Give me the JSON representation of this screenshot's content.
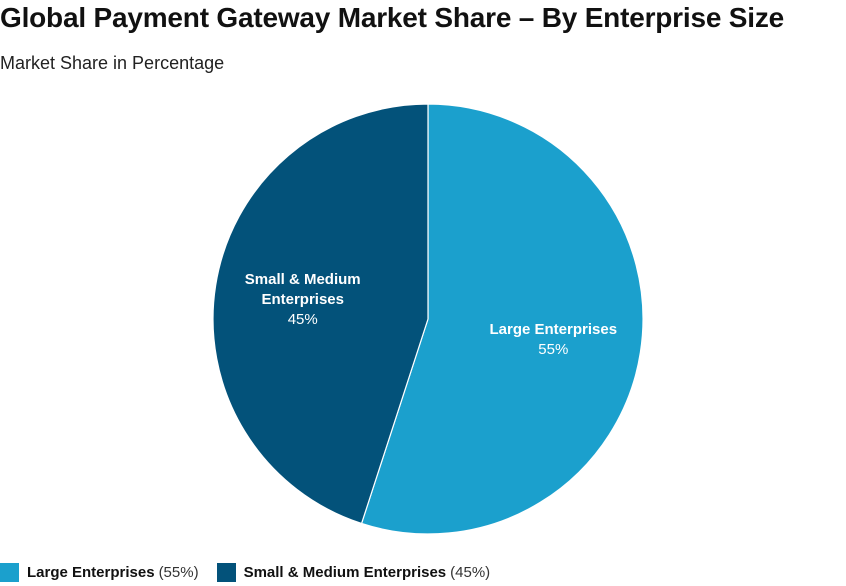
{
  "title": "Global Payment Gateway Market Share – By Enterprise Size",
  "subtitle": "Market Share in Percentage",
  "chart_data": {
    "type": "pie",
    "title": "Global Payment Gateway Market Share – By Enterprise Size",
    "subtitle": "Market Share in Percentage",
    "slices": [
      {
        "name": "Large Enterprises",
        "value": 55,
        "label_value": "55%",
        "color": "#1ba0cd",
        "label_lines": [
          "Large Enterprises"
        ]
      },
      {
        "name": "Small & Medium Enterprises",
        "value": 45,
        "label_value": "45%",
        "color": "#03527a",
        "label_lines": [
          "Small & Medium",
          "Enterprises"
        ]
      }
    ],
    "legend_position": "bottom-left"
  },
  "legend": [
    {
      "name": "Large Enterprises",
      "pct": "(55%)",
      "color": "#1ba0cd"
    },
    {
      "name": "Small & Medium Enterprises",
      "pct": "(45%)",
      "color": "#03527a"
    }
  ]
}
